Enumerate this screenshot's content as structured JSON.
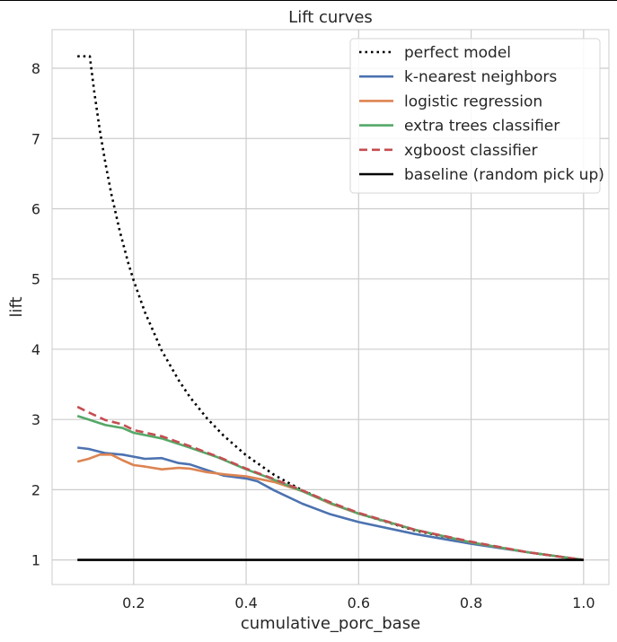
{
  "chart_data": {
    "type": "line",
    "title": "Lift curves",
    "xlabel": "cumulative_porc_base",
    "ylabel": "lift",
    "xlim": [
      0.055,
      1.045
    ],
    "ylim": [
      0.65,
      8.55
    ],
    "x_ticks": [
      0.2,
      0.4,
      0.6,
      0.8,
      1.0
    ],
    "x_tick_labels": [
      "0.2",
      "0.4",
      "0.6",
      "0.8",
      "1.0"
    ],
    "y_ticks": [
      1,
      2,
      3,
      4,
      5,
      6,
      7,
      8
    ],
    "y_tick_labels": [
      "1",
      "2",
      "3",
      "4",
      "5",
      "6",
      "7",
      "8"
    ],
    "grid": true,
    "legend_position": "top-right",
    "series": [
      {
        "name": "perfect model",
        "color": "#000000",
        "dash": "dotted",
        "x": [
          0.1,
          0.122,
          0.13,
          0.14,
          0.15,
          0.16,
          0.175,
          0.19,
          0.2,
          0.22,
          0.25,
          0.28,
          0.3,
          0.33,
          0.36,
          0.4,
          0.45,
          0.5,
          0.55,
          0.6,
          0.7,
          0.8,
          0.9,
          1.0
        ],
        "y": [
          8.17,
          8.17,
          7.66,
          7.11,
          6.64,
          6.22,
          5.69,
          5.24,
          4.98,
          4.53,
          3.98,
          3.56,
          3.32,
          3.02,
          2.77,
          2.49,
          2.21,
          1.99,
          1.81,
          1.66,
          1.42,
          1.25,
          1.11,
          1.0
        ]
      },
      {
        "name": "k-nearest neighbors",
        "color": "#4c72b0",
        "dash": "solid",
        "x": [
          0.1,
          0.12,
          0.15,
          0.18,
          0.2,
          0.22,
          0.25,
          0.28,
          0.3,
          0.33,
          0.36,
          0.4,
          0.42,
          0.45,
          0.5,
          0.55,
          0.6,
          0.7,
          0.8,
          0.9,
          1.0
        ],
        "y": [
          2.6,
          2.58,
          2.52,
          2.5,
          2.47,
          2.44,
          2.45,
          2.38,
          2.36,
          2.28,
          2.2,
          2.16,
          2.12,
          1.99,
          1.8,
          1.65,
          1.54,
          1.37,
          1.23,
          1.11,
          1.0
        ]
      },
      {
        "name": "logistic regression",
        "color": "#dd8452",
        "dash": "solid",
        "x": [
          0.1,
          0.12,
          0.14,
          0.16,
          0.18,
          0.2,
          0.22,
          0.25,
          0.28,
          0.3,
          0.33,
          0.36,
          0.4,
          0.45,
          0.5,
          0.55,
          0.6,
          0.7,
          0.8,
          0.9,
          1.0
        ],
        "y": [
          2.4,
          2.44,
          2.5,
          2.5,
          2.42,
          2.35,
          2.33,
          2.29,
          2.31,
          2.3,
          2.25,
          2.22,
          2.19,
          2.11,
          1.98,
          1.8,
          1.66,
          1.43,
          1.25,
          1.11,
          1.0
        ]
      },
      {
        "name": "extra trees classifier",
        "color": "#55a868",
        "dash": "solid",
        "x": [
          0.1,
          0.12,
          0.15,
          0.18,
          0.2,
          0.25,
          0.3,
          0.35,
          0.4,
          0.45,
          0.5,
          0.55,
          0.6,
          0.7,
          0.8,
          0.9,
          1.0
        ],
        "y": [
          3.05,
          3.0,
          2.92,
          2.88,
          2.81,
          2.73,
          2.6,
          2.46,
          2.29,
          2.14,
          1.98,
          1.81,
          1.66,
          1.43,
          1.25,
          1.11,
          1.0
        ]
      },
      {
        "name": "xgboost classifier",
        "color": "#c44e52",
        "dash": "dashed",
        "x": [
          0.1,
          0.12,
          0.15,
          0.18,
          0.2,
          0.25,
          0.3,
          0.35,
          0.4,
          0.45,
          0.5,
          0.55,
          0.6,
          0.7,
          0.8,
          0.9,
          1.0
        ],
        "y": [
          3.18,
          3.1,
          2.99,
          2.93,
          2.85,
          2.76,
          2.62,
          2.47,
          2.3,
          2.15,
          1.99,
          1.82,
          1.67,
          1.43,
          1.26,
          1.11,
          1.0
        ]
      },
      {
        "name": "baseline (random pick up)",
        "color": "#000000",
        "dash": "solid",
        "x": [
          0.1,
          1.0
        ],
        "y": [
          1.0,
          1.0
        ]
      }
    ]
  }
}
